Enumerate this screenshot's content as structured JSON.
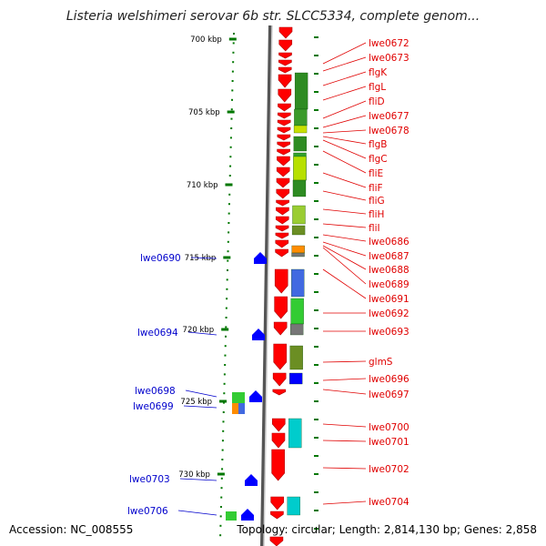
{
  "title": "Listeria welshimeri serovar 6b str. SLCC5334, complete genom...",
  "footer": {
    "accession": "Accession: NC_008555",
    "stats": "Topology: circular; Length: 2,814,130 bp; Genes: 2,858"
  },
  "colors": {
    "gene_red": "#ff0000",
    "gene_blue": "#0000ff",
    "label_red": "#e00000",
    "label_blue": "#0000cc",
    "tick_green": "#007700",
    "backbone": "#888888"
  },
  "scale_ticks": [
    {
      "label": "700 kbp",
      "kbp": 700
    },
    {
      "label": "705 kbp",
      "kbp": 705
    },
    {
      "label": "710 kbp",
      "kbp": 710
    },
    {
      "label": "715 kbp",
      "kbp": 715
    },
    {
      "label": "720 kbp",
      "kbp": 720
    },
    {
      "label": "725 kbp",
      "kbp": 725
    },
    {
      "label": "730 kbp",
      "kbp": 730
    }
  ],
  "right_labels": [
    "lwe0672",
    "lwe0673",
    "flgK",
    "flgL",
    "fliD",
    "lwe0677",
    "lwe0678",
    "flgB",
    "flgC",
    "fliE",
    "fliF",
    "fliG",
    "fliH",
    "fliI",
    "lwe0686",
    "lwe0687",
    "lwe0688",
    "lwe0689",
    "lwe0691",
    "lwe0692",
    "lwe0693",
    "glmS",
    "lwe0696",
    "lwe0697",
    "lwe0700",
    "lwe0701",
    "lwe0702",
    "lwe0704"
  ],
  "left_labels": [
    "lwe0690",
    "lwe0694",
    "lwe0698",
    "lwe0699",
    "lwe0703",
    "lwe0706"
  ]
}
